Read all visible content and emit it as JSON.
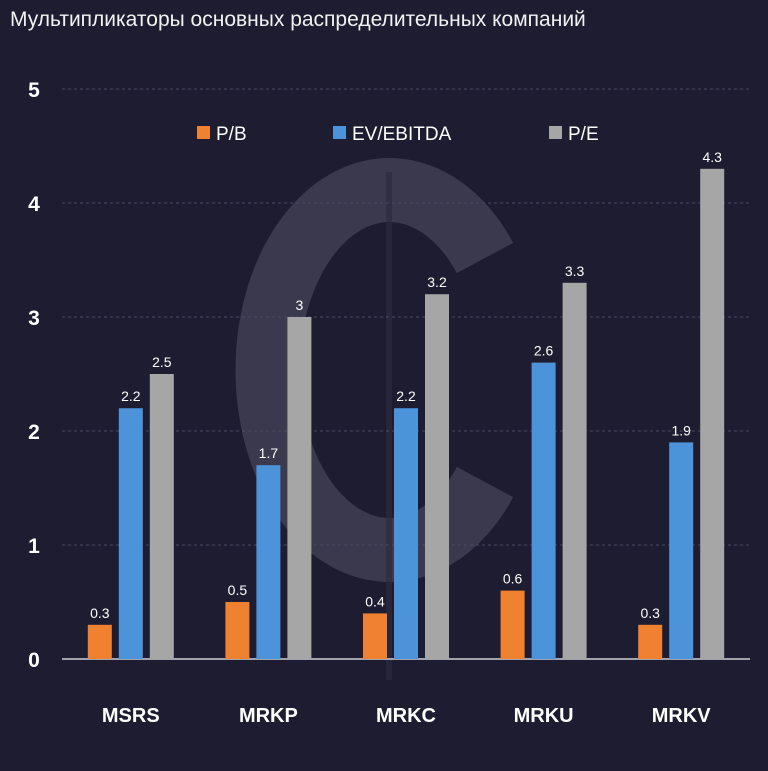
{
  "chart_data": {
    "type": "bar",
    "title": "Мультипликаторы основных распределительных компаний",
    "categories": [
      "MSRS",
      "MRKP",
      "MRKC",
      "MRKU",
      "MRKV"
    ],
    "series": [
      {
        "name": "P/B",
        "color": "#f08131",
        "values": [
          0.3,
          0.5,
          0.4,
          0.6,
          0.3
        ]
      },
      {
        "name": "EV/EBITDA",
        "color": "#4c93d9",
        "values": [
          2.2,
          1.7,
          2.2,
          2.6,
          1.9
        ]
      },
      {
        "name": "P/E",
        "color": "#a6a6a6",
        "values": [
          2.5,
          3,
          3.2,
          3.3,
          4.3
        ]
      }
    ],
    "y_ticks": [
      "0",
      "1",
      "2",
      "3",
      "4",
      "5"
    ],
    "ylim": [
      0,
      5
    ],
    "grid": true,
    "legend_position": "top",
    "watermark": "C-shaped logo"
  }
}
